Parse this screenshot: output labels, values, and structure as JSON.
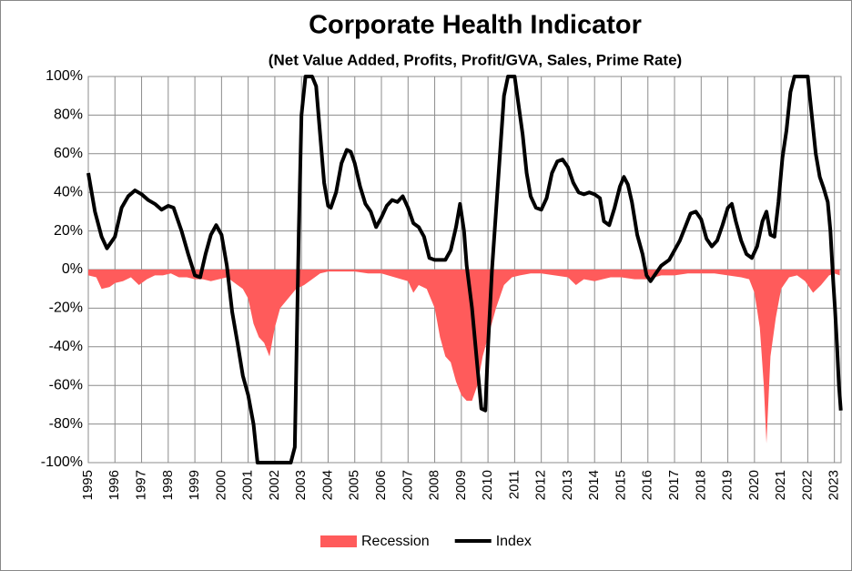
{
  "chart_data": {
    "type": "line",
    "title": "Corporate Health Indicator",
    "subtitle": "(Net Value Added, Profits, Profit/GVA, Sales, Prime Rate)",
    "xlim": [
      1995,
      2023.25
    ],
    "xticks": [
      1995,
      1996,
      1997,
      1998,
      1999,
      2000,
      2001,
      2002,
      2003,
      2004,
      2005,
      2006,
      2007,
      2008,
      2009,
      2010,
      2011,
      2012,
      2013,
      2014,
      2015,
      2016,
      2017,
      2018,
      2019,
      2020,
      2021,
      2022,
      2023
    ],
    "ylim": [
      -100,
      100
    ],
    "yticks": [
      {
        "value": -100,
        "label": "-100%"
      },
      {
        "value": -80,
        "label": "-80%"
      },
      {
        "value": -60,
        "label": "-60%"
      },
      {
        "value": -40,
        "label": "-40%"
      },
      {
        "value": -20,
        "label": "-20%"
      },
      {
        "value": 0,
        "label": "0%"
      },
      {
        "value": 20,
        "label": "20%"
      },
      {
        "value": 40,
        "label": "40%"
      },
      {
        "value": 60,
        "label": "60%"
      },
      {
        "value": 80,
        "label": "80%"
      },
      {
        "value": 100,
        "label": "100%"
      }
    ],
    "grid": true,
    "legend": "bottom",
    "series": [
      {
        "name": "Recession",
        "color": "#ff5b5b",
        "kind": "area",
        "x": [
          1995.0,
          1995.3,
          1995.5,
          1995.8,
          1996.0,
          1996.3,
          1996.6,
          1996.9,
          1997.2,
          1997.5,
          1997.8,
          1998.1,
          1998.4,
          1998.7,
          1999.0,
          1999.3,
          1999.6,
          1999.9,
          2000.2,
          2000.5,
          2000.8,
          2001.0,
          2001.2,
          2001.4,
          2001.6,
          2001.8,
          2002.0,
          2002.2,
          2002.5,
          2002.8,
          2003.1,
          2003.4,
          2003.7,
          2004.0,
          2004.5,
          2005.0,
          2005.5,
          2006.0,
          2006.5,
          2007.0,
          2007.2,
          2007.4,
          2007.7,
          2008.0,
          2008.2,
          2008.4,
          2008.6,
          2008.8,
          2009.0,
          2009.2,
          2009.4,
          2009.6,
          2009.8,
          2010.0,
          2010.3,
          2010.6,
          2010.9,
          2011.2,
          2011.6,
          2012.0,
          2012.5,
          2013.0,
          2013.3,
          2013.6,
          2014.0,
          2014.3,
          2014.6,
          2015.0,
          2015.5,
          2016.0,
          2016.5,
          2017.0,
          2017.5,
          2018.0,
          2018.5,
          2019.0,
          2019.5,
          2019.8,
          2020.0,
          2020.2,
          2020.35,
          2020.45,
          2020.6,
          2020.8,
          2021.0,
          2021.3,
          2021.6,
          2021.9,
          2022.2,
          2022.5,
          2022.8,
          2023.0,
          2023.2
        ],
        "values": [
          -3,
          -4,
          -10,
          -9,
          -7,
          -6,
          -4,
          -8,
          -5,
          -3,
          -3,
          -2,
          -4,
          -4,
          -5,
          -5,
          -6,
          -5,
          -4,
          -7,
          -10,
          -15,
          -28,
          -35,
          -38,
          -45,
          -30,
          -20,
          -15,
          -10,
          -8,
          -5,
          -2,
          -1,
          -1,
          -1,
          -2,
          -2,
          -4,
          -6,
          -12,
          -8,
          -10,
          -20,
          -35,
          -45,
          -48,
          -58,
          -65,
          -68,
          -68,
          -60,
          -45,
          -35,
          -20,
          -8,
          -4,
          -3,
          -2,
          -2,
          -3,
          -4,
          -8,
          -5,
          -6,
          -5,
          -4,
          -4,
          -5,
          -5,
          -3,
          -3,
          -2,
          -2,
          -2,
          -3,
          -4,
          -5,
          -12,
          -30,
          -60,
          -90,
          -45,
          -25,
          -10,
          -4,
          -3,
          -6,
          -12,
          -8,
          -3,
          -2,
          -3
        ]
      },
      {
        "name": "Index",
        "color": "#000000",
        "kind": "line",
        "x": [
          1995.0,
          1995.25,
          1995.5,
          1995.7,
          1996.0,
          1996.25,
          1996.5,
          1996.75,
          1997.0,
          1997.25,
          1997.5,
          1997.75,
          1998.0,
          1998.2,
          1998.5,
          1998.75,
          1999.0,
          1999.2,
          1999.4,
          1999.6,
          1999.8,
          2000.0,
          2000.2,
          2000.4,
          2000.6,
          2000.8,
          2001.0,
          2001.2,
          2001.35,
          2001.6,
          2002.0,
          2002.4,
          2002.6,
          2002.75,
          2002.9,
          2003.0,
          2003.15,
          2003.4,
          2003.55,
          2003.7,
          2003.85,
          2004.0,
          2004.1,
          2004.3,
          2004.5,
          2004.7,
          2004.85,
          2005.0,
          2005.2,
          2005.4,
          2005.6,
          2005.8,
          2006.0,
          2006.2,
          2006.4,
          2006.6,
          2006.8,
          2007.0,
          2007.2,
          2007.4,
          2007.6,
          2007.8,
          2008.0,
          2008.2,
          2008.4,
          2008.6,
          2008.8,
          2008.95,
          2009.1,
          2009.2,
          2009.4,
          2009.6,
          2009.75,
          2009.9,
          2010.0,
          2010.15,
          2010.3,
          2010.45,
          2010.6,
          2010.75,
          2011.0,
          2011.15,
          2011.3,
          2011.45,
          2011.6,
          2011.8,
          2012.0,
          2012.2,
          2012.4,
          2012.6,
          2012.8,
          2013.0,
          2013.2,
          2013.4,
          2013.6,
          2013.8,
          2014.0,
          2014.2,
          2014.35,
          2014.55,
          2014.75,
          2014.95,
          2015.1,
          2015.25,
          2015.4,
          2015.6,
          2015.8,
          2015.95,
          2016.1,
          2016.3,
          2016.5,
          2016.8,
          2017.0,
          2017.2,
          2017.4,
          2017.6,
          2017.8,
          2018.0,
          2018.2,
          2018.4,
          2018.6,
          2018.8,
          2019.0,
          2019.15,
          2019.3,
          2019.5,
          2019.7,
          2019.9,
          2020.1,
          2020.3,
          2020.45,
          2020.6,
          2020.75,
          2020.9,
          2021.05,
          2021.2,
          2021.35,
          2021.5,
          2021.8,
          2022.0,
          2022.15,
          2022.3,
          2022.45,
          2022.6,
          2022.75,
          2022.85,
          2022.95,
          2023.02,
          2023.1,
          2023.17,
          2023.24
        ],
        "values": [
          50,
          30,
          17,
          11,
          17,
          32,
          38,
          41,
          39,
          36,
          34,
          31,
          33,
          32,
          20,
          8,
          -3,
          -4,
          8,
          18,
          23,
          18,
          2,
          -22,
          -38,
          -55,
          -65,
          -80,
          -100,
          -100,
          -100,
          -100,
          -100,
          -92,
          20,
          80,
          100,
          100,
          95,
          70,
          45,
          33,
          32,
          40,
          55,
          62,
          61,
          55,
          43,
          34,
          30,
          22,
          27,
          33,
          36,
          35,
          38,
          32,
          24,
          22,
          17,
          6,
          5,
          5,
          5,
          10,
          22,
          34,
          20,
          2,
          -20,
          -50,
          -72,
          -73,
          -40,
          0,
          30,
          60,
          90,
          100,
          100,
          85,
          70,
          50,
          38,
          32,
          31,
          37,
          50,
          56,
          57,
          53,
          45,
          40,
          39,
          40,
          39,
          37,
          25,
          23,
          32,
          43,
          48,
          44,
          35,
          18,
          8,
          -3,
          -6,
          -2,
          2,
          5,
          10,
          15,
          22,
          29,
          30,
          26,
          16,
          12,
          15,
          23,
          32,
          34,
          25,
          15,
          8,
          6,
          12,
          25,
          30,
          18,
          17,
          35,
          58,
          72,
          92,
          100,
          100,
          100,
          80,
          60,
          48,
          42,
          35,
          20,
          -5,
          -20,
          -40,
          -60,
          -73
        ]
      }
    ]
  }
}
